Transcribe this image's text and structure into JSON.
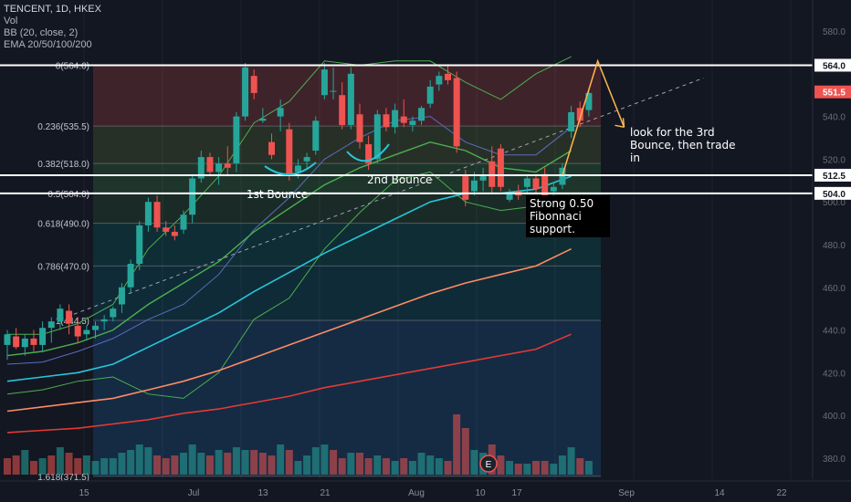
{
  "header": {
    "symbol": "TENCENT, 1D, HKEX",
    "indicators": [
      "Vol",
      "BB (20, close, 2)",
      "EMA 20/50/100/200"
    ]
  },
  "annotations": {
    "first_bounce": "1st Bounce",
    "second_bounce": "2nd Bounce",
    "third_bounce_note": "look for the 3rd Bounce, then trade in",
    "fib_support_note": "Strong 0.50 Fibonnaci support."
  },
  "colors": {
    "background": "#131722",
    "up_candle": "#26a69a",
    "down_candle": "#ef5350",
    "bb_band": "#4caf50",
    "bb_basis": "#5c6bc0",
    "ema20": "#4caf50",
    "ema50": "#26c6da",
    "ema100": "#ff8a65",
    "ema200": "#e53935"
  },
  "chart_data": {
    "type": "candlestick",
    "ylim": [
      368,
      586
    ],
    "y_ticks": [
      380.0,
      400.0,
      420.0,
      440.0,
      460.0,
      480.0,
      500.0,
      520.0,
      540.0,
      580.0
    ],
    "x_ticks": [
      "15",
      "Jul",
      "13",
      "21",
      "Aug",
      "10",
      "17",
      "Sep",
      "14",
      "22"
    ],
    "price_badges": [
      {
        "label": "564.0",
        "value": 564.0,
        "style": "white"
      },
      {
        "label": "551.5",
        "value": 551.5,
        "style": "red"
      },
      {
        "label": "512.5",
        "value": 512.5,
        "style": "white"
      },
      {
        "label": "504.0",
        "value": 504.0,
        "style": "white"
      }
    ],
    "horizontal_lines": [
      564.0,
      512.5,
      504.0
    ],
    "fib_levels": [
      {
        "ratio": "0(564.0)",
        "value": 564.0
      },
      {
        "ratio": "0.236(535.5)",
        "value": 535.5
      },
      {
        "ratio": "0.382(518.0)",
        "value": 518.0
      },
      {
        "ratio": "0.5(504.0)",
        "value": 504.0
      },
      {
        "ratio": "0.618(490.0)",
        "value": 490.0
      },
      {
        "ratio": "0.786(470.0)",
        "value": 470.0
      },
      {
        "ratio": "1(444.5)",
        "value": 444.5
      },
      {
        "ratio": "1.618(371.5)",
        "value": 371.5
      }
    ],
    "candles": [
      {
        "o": 433,
        "h": 440,
        "l": 426,
        "c": 438
      },
      {
        "o": 437,
        "h": 441,
        "l": 431,
        "c": 432
      },
      {
        "o": 432,
        "h": 438,
        "l": 428,
        "c": 436
      },
      {
        "o": 436,
        "h": 440,
        "l": 430,
        "c": 433
      },
      {
        "o": 433,
        "h": 444,
        "l": 430,
        "c": 441
      },
      {
        "o": 441,
        "h": 446,
        "l": 434,
        "c": 444
      },
      {
        "o": 444,
        "h": 452,
        "l": 440,
        "c": 450
      },
      {
        "o": 449,
        "h": 452,
        "l": 438,
        "c": 443
      },
      {
        "o": 442,
        "h": 446,
        "l": 434,
        "c": 437
      },
      {
        "o": 438,
        "h": 442,
        "l": 435,
        "c": 440
      },
      {
        "o": 440,
        "h": 444,
        "l": 436,
        "c": 442
      },
      {
        "o": 444,
        "h": 447,
        "l": 440,
        "c": 445
      },
      {
        "o": 446,
        "h": 451,
        "l": 444,
        "c": 450
      },
      {
        "o": 452,
        "h": 462,
        "l": 448,
        "c": 460
      },
      {
        "o": 460,
        "h": 473,
        "l": 457,
        "c": 471
      },
      {
        "o": 471,
        "h": 491,
        "l": 468,
        "c": 489
      },
      {
        "o": 489,
        "h": 502,
        "l": 486,
        "c": 500
      },
      {
        "o": 500,
        "h": 503,
        "l": 486,
        "c": 488
      },
      {
        "o": 488,
        "h": 491,
        "l": 484,
        "c": 486
      },
      {
        "o": 486,
        "h": 489,
        "l": 482,
        "c": 484
      },
      {
        "o": 487,
        "h": 496,
        "l": 485,
        "c": 494
      },
      {
        "o": 494,
        "h": 513,
        "l": 490,
        "c": 511
      },
      {
        "o": 511,
        "h": 524,
        "l": 509,
        "c": 521
      },
      {
        "o": 521,
        "h": 523,
        "l": 512,
        "c": 514
      },
      {
        "o": 514,
        "h": 521,
        "l": 508,
        "c": 518
      },
      {
        "o": 518,
        "h": 526,
        "l": 512,
        "c": 516
      },
      {
        "o": 518,
        "h": 542,
        "l": 514,
        "c": 540
      },
      {
        "o": 540,
        "h": 565,
        "l": 538,
        "c": 563
      },
      {
        "o": 559,
        "h": 562,
        "l": 548,
        "c": 551
      },
      {
        "o": 538,
        "h": 544,
        "l": 537,
        "c": 539
      },
      {
        "o": 528,
        "h": 532,
        "l": 520,
        "c": 522
      },
      {
        "o": 540,
        "h": 548,
        "l": 533,
        "c": 544
      },
      {
        "o": 534,
        "h": 537,
        "l": 510,
        "c": 513
      },
      {
        "o": 514,
        "h": 520,
        "l": 511,
        "c": 517
      },
      {
        "o": 519,
        "h": 523,
        "l": 516,
        "c": 521
      },
      {
        "o": 524,
        "h": 540,
        "l": 522,
        "c": 538
      },
      {
        "o": 550,
        "h": 565,
        "l": 548,
        "c": 562
      },
      {
        "o": 552,
        "h": 563,
        "l": 548,
        "c": 552
      },
      {
        "o": 550,
        "h": 556,
        "l": 534,
        "c": 536
      },
      {
        "o": 536,
        "h": 563,
        "l": 534,
        "c": 560
      },
      {
        "o": 541,
        "h": 546,
        "l": 525,
        "c": 528
      },
      {
        "o": 527,
        "h": 531,
        "l": 515,
        "c": 518
      },
      {
        "o": 520,
        "h": 543,
        "l": 518,
        "c": 541
      },
      {
        "o": 541,
        "h": 544,
        "l": 533,
        "c": 535
      },
      {
        "o": 535,
        "h": 546,
        "l": 532,
        "c": 543
      },
      {
        "o": 540,
        "h": 548,
        "l": 535,
        "c": 537
      },
      {
        "o": 536,
        "h": 540,
        "l": 533,
        "c": 538
      },
      {
        "o": 538,
        "h": 545,
        "l": 536,
        "c": 544
      },
      {
        "o": 546,
        "h": 557,
        "l": 544,
        "c": 554
      },
      {
        "o": 555,
        "h": 561,
        "l": 552,
        "c": 559
      },
      {
        "o": 560,
        "h": 564,
        "l": 555,
        "c": 557
      },
      {
        "o": 558,
        "h": 561,
        "l": 523,
        "c": 526
      },
      {
        "o": 512,
        "h": 515,
        "l": 498,
        "c": 501
      },
      {
        "o": 505,
        "h": 514,
        "l": 503,
        "c": 510
      },
      {
        "o": 510,
        "h": 516,
        "l": 505,
        "c": 512
      },
      {
        "o": 519,
        "h": 526,
        "l": 504,
        "c": 507
      },
      {
        "o": 525,
        "h": 527,
        "l": 505,
        "c": 507
      },
      {
        "o": 501,
        "h": 506,
        "l": 500,
        "c": 504
      },
      {
        "o": 505,
        "h": 508,
        "l": 501,
        "c": 503
      },
      {
        "o": 507,
        "h": 512,
        "l": 504,
        "c": 511
      },
      {
        "o": 511,
        "h": 513,
        "l": 504,
        "c": 506
      },
      {
        "o": 513,
        "h": 516,
        "l": 501,
        "c": 503
      },
      {
        "o": 505,
        "h": 509,
        "l": 503,
        "c": 507
      },
      {
        "o": 508,
        "h": 518,
        "l": 506,
        "c": 516
      },
      {
        "o": 533,
        "h": 545,
        "l": 530,
        "c": 542
      },
      {
        "o": 544,
        "h": 547,
        "l": 535,
        "c": 538
      },
      {
        "o": 543,
        "h": 553,
        "l": 540,
        "c": 551
      }
    ],
    "volume": [
      {
        "v": 0.6,
        "up": false
      },
      {
        "v": 0.7,
        "up": false
      },
      {
        "v": 0.9,
        "up": true
      },
      {
        "v": 0.5,
        "up": false
      },
      {
        "v": 0.6,
        "up": true
      },
      {
        "v": 0.7,
        "up": false
      },
      {
        "v": 1.0,
        "up": true
      },
      {
        "v": 0.8,
        "up": false
      },
      {
        "v": 0.6,
        "up": false
      },
      {
        "v": 0.7,
        "up": true
      },
      {
        "v": 0.5,
        "up": true
      },
      {
        "v": 0.6,
        "up": true
      },
      {
        "v": 0.6,
        "up": true
      },
      {
        "v": 0.8,
        "up": true
      },
      {
        "v": 0.9,
        "up": true
      },
      {
        "v": 1.1,
        "up": true
      },
      {
        "v": 1.0,
        "up": true
      },
      {
        "v": 0.7,
        "up": false
      },
      {
        "v": 0.6,
        "up": false
      },
      {
        "v": 0.7,
        "up": false
      },
      {
        "v": 0.8,
        "up": true
      },
      {
        "v": 1.1,
        "up": true
      },
      {
        "v": 0.8,
        "up": true
      },
      {
        "v": 0.7,
        "up": false
      },
      {
        "v": 0.9,
        "up": true
      },
      {
        "v": 0.8,
        "up": false
      },
      {
        "v": 1.0,
        "up": true
      },
      {
        "v": 0.9,
        "up": true
      },
      {
        "v": 0.9,
        "up": false
      },
      {
        "v": 0.8,
        "up": false
      },
      {
        "v": 0.7,
        "up": false
      },
      {
        "v": 1.1,
        "up": true
      },
      {
        "v": 0.9,
        "up": false
      },
      {
        "v": 0.5,
        "up": true
      },
      {
        "v": 0.7,
        "up": true
      },
      {
        "v": 1.0,
        "up": true
      },
      {
        "v": 1.1,
        "up": true
      },
      {
        "v": 0.9,
        "up": false
      },
      {
        "v": 0.6,
        "up": false
      },
      {
        "v": 0.8,
        "up": true
      },
      {
        "v": 0.8,
        "up": false
      },
      {
        "v": 0.6,
        "up": false
      },
      {
        "v": 0.7,
        "up": true
      },
      {
        "v": 0.6,
        "up": false
      },
      {
        "v": 0.5,
        "up": true
      },
      {
        "v": 0.6,
        "up": false
      },
      {
        "v": 0.5,
        "up": true
      },
      {
        "v": 0.8,
        "up": true
      },
      {
        "v": 0.7,
        "up": true
      },
      {
        "v": 0.6,
        "up": true
      },
      {
        "v": 0.5,
        "up": false
      },
      {
        "v": 2.2,
        "up": false
      },
      {
        "v": 1.7,
        "up": false
      },
      {
        "v": 0.9,
        "up": true
      },
      {
        "v": 0.8,
        "up": true
      },
      {
        "v": 1.1,
        "up": false
      },
      {
        "v": 0.7,
        "up": false
      },
      {
        "v": 0.5,
        "up": true
      },
      {
        "v": 0.4,
        "up": false
      },
      {
        "v": 0.4,
        "up": true
      },
      {
        "v": 0.5,
        "up": false
      },
      {
        "v": 0.5,
        "up": false
      },
      {
        "v": 0.4,
        "up": true
      },
      {
        "v": 0.7,
        "up": true
      },
      {
        "v": 1.0,
        "up": true
      },
      {
        "v": 0.6,
        "up": false
      },
      {
        "v": 0.5,
        "up": true
      }
    ],
    "series": [
      {
        "points": [
          [
            0,
            438
          ],
          [
            4,
            438
          ],
          [
            8,
            443
          ],
          [
            12,
            452
          ],
          [
            16,
            478
          ],
          [
            20,
            494
          ],
          [
            24,
            512
          ],
          [
            28,
            537
          ],
          [
            32,
            547
          ],
          [
            36,
            566
          ],
          [
            40,
            564
          ],
          [
            44,
            566
          ],
          [
            48,
            566
          ],
          [
            52,
            556
          ],
          [
            56,
            548
          ],
          [
            60,
            560
          ],
          [
            64,
            568
          ]
        ]
      },
      {
        "points": [
          [
            0,
            410
          ],
          [
            4,
            412
          ],
          [
            8,
            416
          ],
          [
            12,
            418
          ],
          [
            16,
            410
          ],
          [
            20,
            408
          ],
          [
            24,
            420
          ],
          [
            28,
            445
          ],
          [
            32,
            455
          ],
          [
            36,
            478
          ],
          [
            40,
            495
          ],
          [
            44,
            510
          ],
          [
            48,
            514
          ],
          [
            52,
            500
          ],
          [
            56,
            496
          ],
          [
            60,
            498
          ],
          [
            64,
            502
          ]
        ]
      },
      {
        "points": [
          [
            0,
            424
          ],
          [
            4,
            425
          ],
          [
            8,
            430
          ],
          [
            12,
            436
          ],
          [
            16,
            445
          ],
          [
            20,
            452
          ],
          [
            24,
            466
          ],
          [
            28,
            487
          ],
          [
            32,
            502
          ],
          [
            36,
            520
          ],
          [
            40,
            530
          ],
          [
            44,
            538
          ],
          [
            48,
            540
          ],
          [
            52,
            528
          ],
          [
            56,
            522
          ],
          [
            60,
            522
          ],
          [
            64,
            535
          ]
        ]
      },
      {
        "points": [
          [
            0,
            428
          ],
          [
            4,
            430
          ],
          [
            8,
            434
          ],
          [
            12,
            440
          ],
          [
            16,
            452
          ],
          [
            20,
            462
          ],
          [
            24,
            472
          ],
          [
            28,
            486
          ],
          [
            32,
            497
          ],
          [
            36,
            508
          ],
          [
            40,
            516
          ],
          [
            44,
            522
          ],
          [
            48,
            528
          ],
          [
            52,
            524
          ],
          [
            56,
            516
          ],
          [
            60,
            514
          ],
          [
            64,
            524
          ]
        ]
      },
      {
        "points": [
          [
            0,
            416
          ],
          [
            4,
            418
          ],
          [
            8,
            420
          ],
          [
            12,
            424
          ],
          [
            16,
            432
          ],
          [
            20,
            440
          ],
          [
            24,
            448
          ],
          [
            28,
            458
          ],
          [
            32,
            467
          ],
          [
            36,
            476
          ],
          [
            40,
            484
          ],
          [
            44,
            492
          ],
          [
            48,
            500
          ],
          [
            52,
            504
          ],
          [
            56,
            504
          ],
          [
            60,
            506
          ],
          [
            64,
            512
          ]
        ]
      },
      {
        "points": [
          [
            0,
            402
          ],
          [
            4,
            404
          ],
          [
            8,
            406
          ],
          [
            12,
            408
          ],
          [
            16,
            412
          ],
          [
            20,
            416
          ],
          [
            24,
            421
          ],
          [
            28,
            427
          ],
          [
            32,
            433
          ],
          [
            36,
            439
          ],
          [
            40,
            445
          ],
          [
            44,
            451
          ],
          [
            48,
            457
          ],
          [
            52,
            462
          ],
          [
            56,
            466
          ],
          [
            60,
            470
          ],
          [
            64,
            478
          ]
        ]
      },
      {
        "points": [
          [
            0,
            392
          ],
          [
            4,
            393
          ],
          [
            8,
            394
          ],
          [
            12,
            396
          ],
          [
            16,
            398
          ],
          [
            20,
            401
          ],
          [
            24,
            403
          ],
          [
            28,
            406
          ],
          [
            32,
            409
          ],
          [
            36,
            413
          ],
          [
            40,
            416
          ],
          [
            44,
            419
          ],
          [
            48,
            422
          ],
          [
            52,
            425
          ],
          [
            56,
            428
          ],
          [
            60,
            431
          ],
          [
            64,
            438
          ]
        ]
      }
    ],
    "trendline": {
      "from": [
        6,
        445
      ],
      "to": [
        79,
        558
      ]
    },
    "projection": [
      [
        63,
        512.5
      ],
      [
        67,
        566
      ],
      [
        70,
        535
      ]
    ]
  }
}
